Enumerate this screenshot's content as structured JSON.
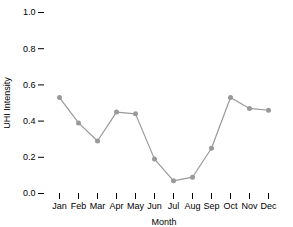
{
  "chart_data": {
    "type": "line",
    "categories": [
      "Jan",
      "Feb",
      "Mar",
      "Apr",
      "May",
      "Jun",
      "Jul",
      "Aug",
      "Sep",
      "Oct",
      "Nov",
      "Dec"
    ],
    "values": [
      0.53,
      0.39,
      0.29,
      0.45,
      0.44,
      0.19,
      0.07,
      0.09,
      0.25,
      0.53,
      0.47,
      0.46
    ],
    "xlabel": "Month",
    "ylabel": "UHI Intensity",
    "ylim": [
      0.0,
      1.0
    ],
    "yticks": [
      {
        "value": 0.0,
        "label": "0.0"
      },
      0.2,
      0.4,
      0.6,
      0.8,
      {
        "value": 1.0,
        "label": "1.0"
      }
    ],
    "color": "#999999",
    "marker": "circle",
    "grid": false
  }
}
